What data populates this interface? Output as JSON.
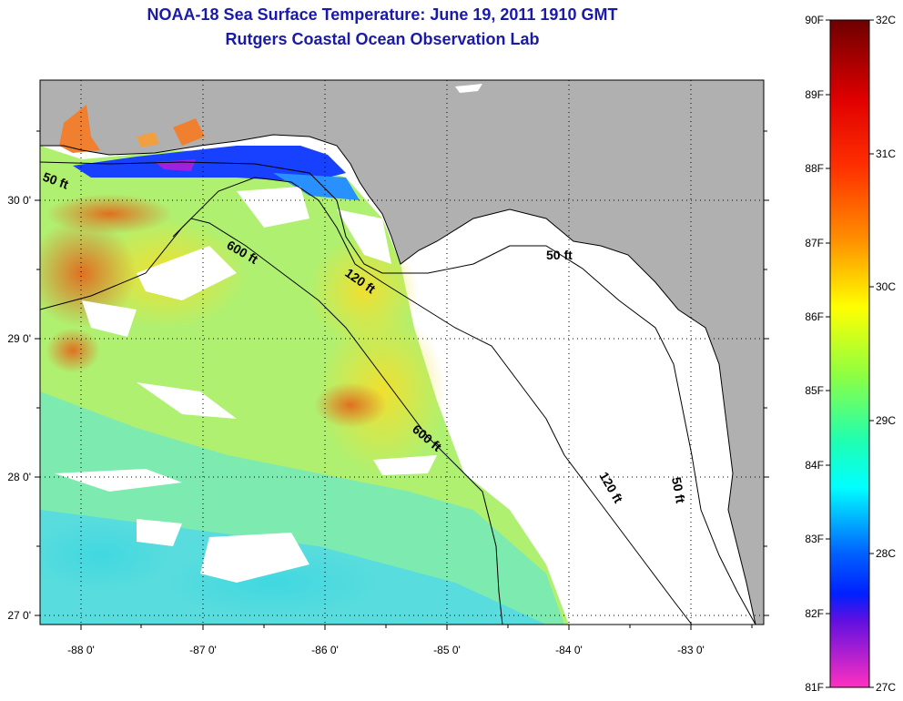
{
  "title": {
    "line1": "NOAA-18 Sea Surface Temperature:  June 19, 2011 1910 GMT",
    "line2": "Rutgers Coastal Ocean Observation Lab"
  },
  "map": {
    "lon_ticks": [
      "-88 0'",
      "-87 0'",
      "-86 0'",
      "-85 0'",
      "-84 0'",
      "-83 0'"
    ],
    "lat_ticks": [
      "30 0'",
      "29 0'",
      "28 0'",
      "27 0'"
    ],
    "land_color": "#b0b0b0",
    "nodata_color": "#ffffff",
    "contours": [
      {
        "label": "50 ft"
      },
      {
        "label": "50 ft"
      },
      {
        "label": "50 ft"
      },
      {
        "label": "120 ft"
      },
      {
        "label": "120 ft"
      },
      {
        "label": "600 ft"
      },
      {
        "label": "600 ft"
      }
    ]
  },
  "colorbar": {
    "fahrenheit_labels": [
      "90F",
      "89F",
      "88F",
      "87F",
      "86F",
      "85F",
      "84F",
      "83F",
      "82F",
      "81F"
    ],
    "celsius_labels": [
      "32C",
      "31C",
      "30C",
      "29C",
      "28C",
      "27C"
    ],
    "colors": [
      "#7a0000",
      "#ff0000",
      "#ff8000",
      "#ffff00",
      "#80ff60",
      "#00ffff",
      "#0040ff",
      "#8000ff",
      "#ff40c0"
    ]
  }
}
